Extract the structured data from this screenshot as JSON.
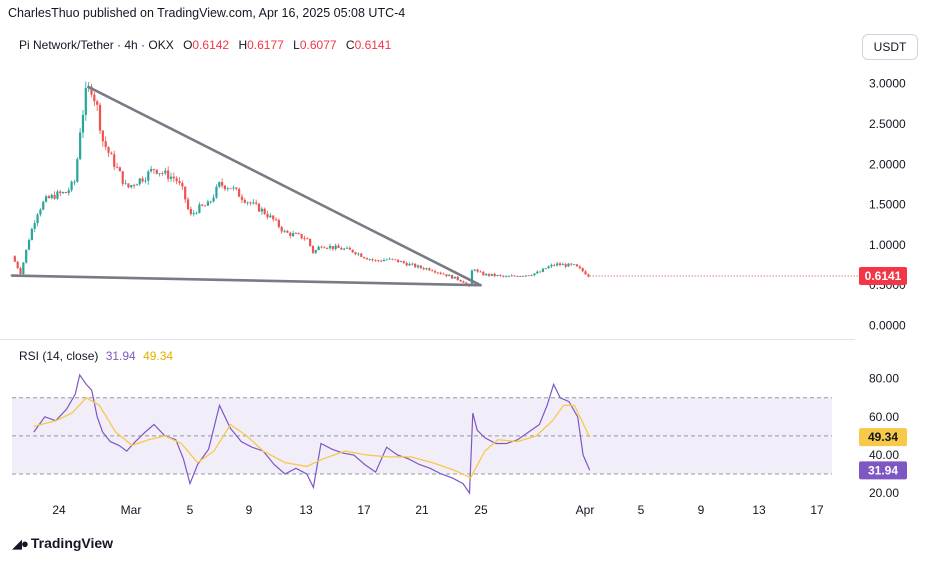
{
  "header": {
    "text": "CharlesThuo published on TradingView.com, Apr 16, 2025 05:08 UTC-4"
  },
  "legend": {
    "symbol": "Pi Network/Tether · 4h · OKX",
    "o_label": "O",
    "o_value": "0.6142",
    "h_label": "H",
    "h_value": "0.6177",
    "l_label": "L",
    "l_value": "0.6077",
    "c_label": "C",
    "c_value": "0.6141"
  },
  "currency_button": "USDT",
  "rsi_legend": {
    "label": "RSI (14, close)",
    "rsi_value": "31.94",
    "ma_value": "49.34"
  },
  "footer": {
    "brand": "TradingView"
  },
  "colors": {
    "up": "#26a69a",
    "down": "#ef5350",
    "rsi": "#7e57c2",
    "rsi_ma": "#f7c948",
    "price_badge": "#f23645"
  },
  "chart_data": [
    {
      "type": "candlestick",
      "ylim": [
        0,
        3.1
      ],
      "y_ticks": [
        "3.0000",
        "2.5000",
        "2.0000",
        "1.5000",
        "1.0000",
        "0.5000",
        "0.0000"
      ],
      "x_ticks": [
        "24",
        "Mar",
        "5",
        "9",
        "13",
        "17",
        "21",
        "25",
        "Apr",
        "5",
        "9",
        "13",
        "17"
      ],
      "last_price": "0.6141",
      "close_path": [
        {
          "x": 0.0,
          "y": 0.86
        },
        {
          "x": 0.8,
          "y": 0.65
        },
        {
          "x": 1.6,
          "y": 1.1
        },
        {
          "x": 2.3,
          "y": 1.4
        },
        {
          "x": 3.0,
          "y": 1.55
        },
        {
          "x": 4.0,
          "y": 1.62
        },
        {
          "x": 5.0,
          "y": 1.65
        },
        {
          "x": 5.8,
          "y": 1.8
        },
        {
          "x": 6.2,
          "y": 2.4
        },
        {
          "x": 6.8,
          "y": 2.9
        },
        {
          "x": 7.3,
          "y": 2.95
        },
        {
          "x": 7.8,
          "y": 2.7
        },
        {
          "x": 8.3,
          "y": 2.3
        },
        {
          "x": 9.0,
          "y": 2.1
        },
        {
          "x": 9.8,
          "y": 1.9
        },
        {
          "x": 10.5,
          "y": 1.7
        },
        {
          "x": 11.3,
          "y": 1.78
        },
        {
          "x": 12.2,
          "y": 1.85
        },
        {
          "x": 13.0,
          "y": 1.95
        },
        {
          "x": 14.0,
          "y": 1.88
        },
        {
          "x": 15.0,
          "y": 1.82
        },
        {
          "x": 15.7,
          "y": 1.65
        },
        {
          "x": 16.3,
          "y": 1.35
        },
        {
          "x": 17.0,
          "y": 1.45
        },
        {
          "x": 18.0,
          "y": 1.5
        },
        {
          "x": 19.0,
          "y": 1.75
        },
        {
          "x": 20.0,
          "y": 1.72
        },
        {
          "x": 21.0,
          "y": 1.6
        },
        {
          "x": 22.0,
          "y": 1.5
        },
        {
          "x": 23.0,
          "y": 1.42
        },
        {
          "x": 24.0,
          "y": 1.3
        },
        {
          "x": 25.0,
          "y": 1.15
        },
        {
          "x": 26.0,
          "y": 1.12
        },
        {
          "x": 27.0,
          "y": 1.08
        },
        {
          "x": 27.6,
          "y": 0.9
        },
        {
          "x": 28.3,
          "y": 1.0
        },
        {
          "x": 29.3,
          "y": 0.97
        },
        {
          "x": 30.3,
          "y": 0.95
        },
        {
          "x": 31.3,
          "y": 0.92
        },
        {
          "x": 32.3,
          "y": 0.85
        },
        {
          "x": 33.3,
          "y": 0.8
        },
        {
          "x": 34.3,
          "y": 0.82
        },
        {
          "x": 35.3,
          "y": 0.8
        },
        {
          "x": 36.3,
          "y": 0.76
        },
        {
          "x": 37.3,
          "y": 0.72
        },
        {
          "x": 38.3,
          "y": 0.7
        },
        {
          "x": 39.3,
          "y": 0.65
        },
        {
          "x": 40.3,
          "y": 0.6
        },
        {
          "x": 41.3,
          "y": 0.55
        },
        {
          "x": 41.9,
          "y": 0.47
        },
        {
          "x": 42.2,
          "y": 0.75
        },
        {
          "x": 42.6,
          "y": 0.66
        },
        {
          "x": 43.3,
          "y": 0.63
        },
        {
          "x": 44.3,
          "y": 0.62
        },
        {
          "x": 45.3,
          "y": 0.6
        },
        {
          "x": 46.3,
          "y": 0.62
        },
        {
          "x": 47.3,
          "y": 0.63
        },
        {
          "x": 48.3,
          "y": 0.66
        },
        {
          "x": 49.0,
          "y": 0.72
        },
        {
          "x": 49.8,
          "y": 0.76
        },
        {
          "x": 50.6,
          "y": 0.75
        },
        {
          "x": 51.5,
          "y": 0.74
        },
        {
          "x": 52.2,
          "y": 0.68
        },
        {
          "x": 52.9,
          "y": 0.61
        }
      ],
      "trendlines": [
        {
          "from": {
            "x": 7.0,
            "y": 2.96
          },
          "to": {
            "x": 42.9,
            "y": 0.5
          }
        },
        {
          "from": {
            "x": 0.0,
            "y": 0.62
          },
          "to": {
            "x": 42.9,
            "y": 0.5
          }
        }
      ]
    },
    {
      "type": "line",
      "title": "RSI (14, close)",
      "ylim": [
        10,
        90
      ],
      "y_ticks": [
        "80.00",
        "60.00",
        "40.00",
        "20.00"
      ],
      "band": [
        30,
        70
      ],
      "midline": 50,
      "series": [
        {
          "name": "RSI",
          "points": [
            {
              "x": 2.0,
              "y": 52
            },
            {
              "x": 3.0,
              "y": 60
            },
            {
              "x": 4.0,
              "y": 58
            },
            {
              "x": 5.0,
              "y": 64
            },
            {
              "x": 5.8,
              "y": 72
            },
            {
              "x": 6.2,
              "y": 82
            },
            {
              "x": 6.8,
              "y": 77
            },
            {
              "x": 7.3,
              "y": 74
            },
            {
              "x": 7.8,
              "y": 60
            },
            {
              "x": 8.3,
              "y": 52
            },
            {
              "x": 9.0,
              "y": 47
            },
            {
              "x": 9.8,
              "y": 45
            },
            {
              "x": 10.5,
              "y": 42
            },
            {
              "x": 11.3,
              "y": 47
            },
            {
              "x": 12.2,
              "y": 52
            },
            {
              "x": 13.0,
              "y": 56
            },
            {
              "x": 14.0,
              "y": 50
            },
            {
              "x": 15.0,
              "y": 48
            },
            {
              "x": 15.7,
              "y": 38
            },
            {
              "x": 16.3,
              "y": 25
            },
            {
              "x": 17.0,
              "y": 35
            },
            {
              "x": 18.0,
              "y": 43
            },
            {
              "x": 19.0,
              "y": 66
            },
            {
              "x": 20.0,
              "y": 54
            },
            {
              "x": 21.0,
              "y": 47
            },
            {
              "x": 22.0,
              "y": 44
            },
            {
              "x": 23.0,
              "y": 42
            },
            {
              "x": 24.0,
              "y": 35
            },
            {
              "x": 25.0,
              "y": 30
            },
            {
              "x": 26.0,
              "y": 33
            },
            {
              "x": 27.0,
              "y": 30
            },
            {
              "x": 27.6,
              "y": 23
            },
            {
              "x": 28.3,
              "y": 46
            },
            {
              "x": 29.3,
              "y": 43
            },
            {
              "x": 30.3,
              "y": 41
            },
            {
              "x": 31.3,
              "y": 40
            },
            {
              "x": 32.3,
              "y": 35
            },
            {
              "x": 33.3,
              "y": 31
            },
            {
              "x": 34.3,
              "y": 44
            },
            {
              "x": 35.3,
              "y": 40
            },
            {
              "x": 36.3,
              "y": 38
            },
            {
              "x": 37.3,
              "y": 35
            },
            {
              "x": 38.3,
              "y": 33
            },
            {
              "x": 39.3,
              "y": 30
            },
            {
              "x": 40.3,
              "y": 28
            },
            {
              "x": 41.3,
              "y": 25
            },
            {
              "x": 41.9,
              "y": 20
            },
            {
              "x": 42.2,
              "y": 62
            },
            {
              "x": 42.6,
              "y": 53
            },
            {
              "x": 43.3,
              "y": 49
            },
            {
              "x": 44.3,
              "y": 46
            },
            {
              "x": 45.3,
              "y": 46
            },
            {
              "x": 46.3,
              "y": 48
            },
            {
              "x": 47.3,
              "y": 52
            },
            {
              "x": 48.3,
              "y": 56
            },
            {
              "x": 49.0,
              "y": 66
            },
            {
              "x": 49.6,
              "y": 77
            },
            {
              "x": 50.2,
              "y": 70
            },
            {
              "x": 51.0,
              "y": 68
            },
            {
              "x": 51.8,
              "y": 60
            },
            {
              "x": 52.3,
              "y": 40
            },
            {
              "x": 52.9,
              "y": 31.94
            }
          ]
        },
        {
          "name": "MA",
          "points": [
            {
              "x": 2.0,
              "y": 55
            },
            {
              "x": 4.0,
              "y": 58
            },
            {
              "x": 5.5,
              "y": 62
            },
            {
              "x": 6.8,
              "y": 70
            },
            {
              "x": 8.0,
              "y": 66
            },
            {
              "x": 9.5,
              "y": 52
            },
            {
              "x": 11.0,
              "y": 45
            },
            {
              "x": 12.5,
              "y": 48
            },
            {
              "x": 14.0,
              "y": 50
            },
            {
              "x": 15.5,
              "y": 46
            },
            {
              "x": 17.0,
              "y": 36
            },
            {
              "x": 18.5,
              "y": 42
            },
            {
              "x": 20.0,
              "y": 56
            },
            {
              "x": 21.5,
              "y": 50
            },
            {
              "x": 23.0,
              "y": 42
            },
            {
              "x": 25.0,
              "y": 36
            },
            {
              "x": 27.0,
              "y": 34
            },
            {
              "x": 28.5,
              "y": 38
            },
            {
              "x": 30.5,
              "y": 42
            },
            {
              "x": 32.5,
              "y": 40
            },
            {
              "x": 34.5,
              "y": 39
            },
            {
              "x": 36.5,
              "y": 39
            },
            {
              "x": 38.5,
              "y": 36
            },
            {
              "x": 40.5,
              "y": 32
            },
            {
              "x": 42.0,
              "y": 28
            },
            {
              "x": 43.3,
              "y": 42
            },
            {
              "x": 44.5,
              "y": 48
            },
            {
              "x": 46.3,
              "y": 47
            },
            {
              "x": 48.0,
              "y": 50
            },
            {
              "x": 49.5,
              "y": 58
            },
            {
              "x": 50.5,
              "y": 66
            },
            {
              "x": 51.5,
              "y": 66
            },
            {
              "x": 52.9,
              "y": 49.34
            }
          ]
        }
      ]
    }
  ]
}
